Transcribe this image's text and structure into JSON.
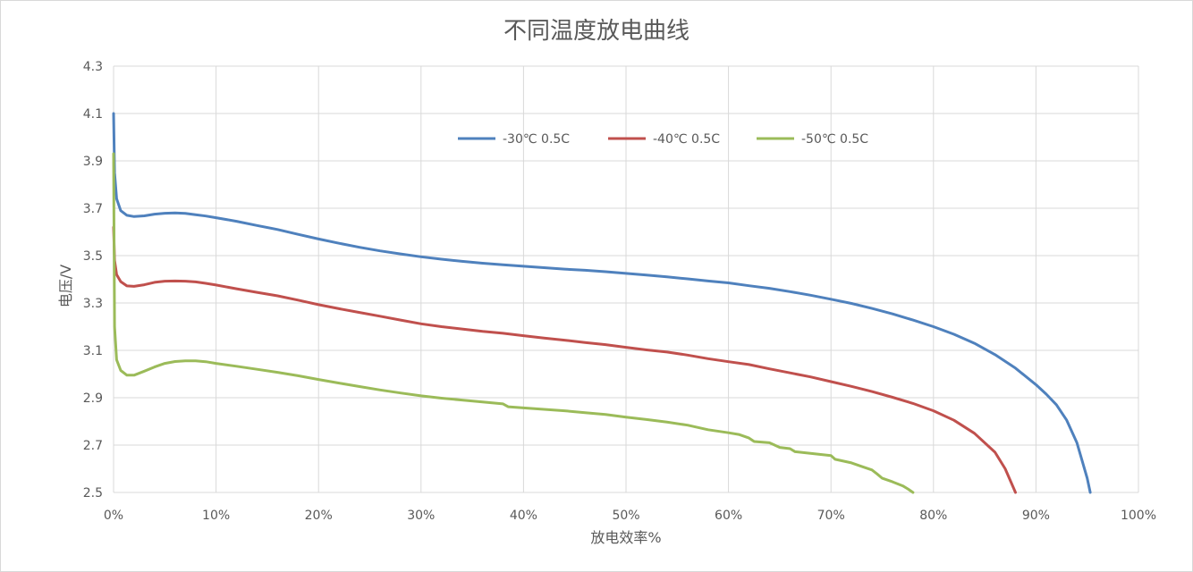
{
  "chart_data": {
    "type": "line",
    "title": "不同温度放电曲线",
    "xlabel": "放电效率%",
    "ylabel": "电压/V",
    "xlim": [
      0,
      100
    ],
    "ylim": [
      2.5,
      4.3
    ],
    "x_ticks": [
      "0%",
      "10%",
      "20%",
      "30%",
      "40%",
      "50%",
      "60%",
      "70%",
      "80%",
      "90%",
      "100%"
    ],
    "y_ticks": [
      "2.5",
      "2.7",
      "2.9",
      "3.1",
      "3.3",
      "3.5",
      "3.7",
      "3.9",
      "4.1",
      "4.3"
    ],
    "grid": true,
    "legend_position": "top-center",
    "series": [
      {
        "name": "-30℃ 0.5C",
        "color": "#4f81bd",
        "points": [
          [
            0,
            4.1
          ],
          [
            0.1,
            3.85
          ],
          [
            0.3,
            3.74
          ],
          [
            0.7,
            3.69
          ],
          [
            1.3,
            3.67
          ],
          [
            2,
            3.665
          ],
          [
            3,
            3.668
          ],
          [
            4,
            3.675
          ],
          [
            5,
            3.679
          ],
          [
            6,
            3.68
          ],
          [
            7,
            3.678
          ],
          [
            8,
            3.673
          ],
          [
            9,
            3.667
          ],
          [
            10,
            3.66
          ],
          [
            12,
            3.645
          ],
          [
            14,
            3.627
          ],
          [
            16,
            3.61
          ],
          [
            18,
            3.59
          ],
          [
            20,
            3.57
          ],
          [
            22,
            3.552
          ],
          [
            24,
            3.535
          ],
          [
            26,
            3.52
          ],
          [
            28,
            3.507
          ],
          [
            30,
            3.495
          ],
          [
            32,
            3.485
          ],
          [
            34,
            3.476
          ],
          [
            36,
            3.468
          ],
          [
            38,
            3.461
          ],
          [
            40,
            3.455
          ],
          [
            42,
            3.449
          ],
          [
            44,
            3.443
          ],
          [
            46,
            3.438
          ],
          [
            48,
            3.432
          ],
          [
            50,
            3.425
          ],
          [
            52,
            3.418
          ],
          [
            54,
            3.41
          ],
          [
            56,
            3.402
          ],
          [
            58,
            3.393
          ],
          [
            60,
            3.385
          ],
          [
            62,
            3.373
          ],
          [
            64,
            3.362
          ],
          [
            66,
            3.348
          ],
          [
            68,
            3.333
          ],
          [
            70,
            3.316
          ],
          [
            72,
            3.298
          ],
          [
            74,
            3.277
          ],
          [
            76,
            3.254
          ],
          [
            78,
            3.228
          ],
          [
            80,
            3.2
          ],
          [
            82,
            3.168
          ],
          [
            84,
            3.13
          ],
          [
            86,
            3.082
          ],
          [
            88,
            3.025
          ],
          [
            90,
            2.955
          ],
          [
            91,
            2.915
          ],
          [
            92,
            2.87
          ],
          [
            93,
            2.805
          ],
          [
            94,
            2.71
          ],
          [
            94.6,
            2.62
          ],
          [
            95,
            2.56
          ],
          [
            95.3,
            2.5
          ]
        ]
      },
      {
        "name": "-40℃ 0.5C",
        "color": "#c0504d",
        "points": [
          [
            0,
            3.62
          ],
          [
            0.1,
            3.48
          ],
          [
            0.3,
            3.42
          ],
          [
            0.7,
            3.39
          ],
          [
            1.3,
            3.372
          ],
          [
            2,
            3.37
          ],
          [
            3,
            3.377
          ],
          [
            4,
            3.387
          ],
          [
            5,
            3.392
          ],
          [
            6,
            3.393
          ],
          [
            7,
            3.392
          ],
          [
            8,
            3.389
          ],
          [
            9,
            3.383
          ],
          [
            10,
            3.376
          ],
          [
            12,
            3.36
          ],
          [
            14,
            3.345
          ],
          [
            16,
            3.33
          ],
          [
            18,
            3.312
          ],
          [
            20,
            3.293
          ],
          [
            22,
            3.276
          ],
          [
            24,
            3.26
          ],
          [
            26,
            3.244
          ],
          [
            28,
            3.228
          ],
          [
            30,
            3.212
          ],
          [
            32,
            3.2
          ],
          [
            34,
            3.19
          ],
          [
            36,
            3.18
          ],
          [
            38,
            3.172
          ],
          [
            40,
            3.162
          ],
          [
            42,
            3.152
          ],
          [
            44,
            3.143
          ],
          [
            46,
            3.133
          ],
          [
            48,
            3.124
          ],
          [
            50,
            3.113
          ],
          [
            52,
            3.102
          ],
          [
            54,
            3.093
          ],
          [
            56,
            3.08
          ],
          [
            58,
            3.065
          ],
          [
            60,
            3.052
          ],
          [
            62,
            3.04
          ],
          [
            64,
            3.022
          ],
          [
            66,
            3.005
          ],
          [
            68,
            2.988
          ],
          [
            70,
            2.968
          ],
          [
            72,
            2.948
          ],
          [
            74,
            2.926
          ],
          [
            76,
            2.902
          ],
          [
            78,
            2.876
          ],
          [
            80,
            2.845
          ],
          [
            82,
            2.805
          ],
          [
            84,
            2.75
          ],
          [
            86,
            2.67
          ],
          [
            87,
            2.6
          ],
          [
            87.6,
            2.54
          ],
          [
            88,
            2.5
          ]
        ]
      },
      {
        "name": "-50℃ 0.5C",
        "color": "#9bbb59",
        "points": [
          [
            0,
            3.93
          ],
          [
            0.1,
            3.2
          ],
          [
            0.3,
            3.06
          ],
          [
            0.7,
            3.015
          ],
          [
            1.3,
            2.995
          ],
          [
            2,
            2.995
          ],
          [
            3,
            3.012
          ],
          [
            4,
            3.03
          ],
          [
            5,
            3.045
          ],
          [
            6,
            3.053
          ],
          [
            7,
            3.056
          ],
          [
            8,
            3.056
          ],
          [
            9,
            3.052
          ],
          [
            10,
            3.045
          ],
          [
            12,
            3.033
          ],
          [
            14,
            3.02
          ],
          [
            16,
            3.007
          ],
          [
            18,
            2.993
          ],
          [
            20,
            2.977
          ],
          [
            22,
            2.962
          ],
          [
            24,
            2.947
          ],
          [
            26,
            2.933
          ],
          [
            28,
            2.92
          ],
          [
            30,
            2.908
          ],
          [
            32,
            2.898
          ],
          [
            34,
            2.89
          ],
          [
            36,
            2.882
          ],
          [
            38,
            2.874
          ],
          [
            38.5,
            2.862
          ],
          [
            40,
            2.857
          ],
          [
            42,
            2.851
          ],
          [
            44,
            2.845
          ],
          [
            46,
            2.837
          ],
          [
            48,
            2.829
          ],
          [
            50,
            2.818
          ],
          [
            52,
            2.808
          ],
          [
            54,
            2.797
          ],
          [
            56,
            2.784
          ],
          [
            58,
            2.765
          ],
          [
            60,
            2.752
          ],
          [
            61,
            2.745
          ],
          [
            62,
            2.73
          ],
          [
            62.5,
            2.715
          ],
          [
            64,
            2.71
          ],
          [
            64.5,
            2.7
          ],
          [
            65,
            2.69
          ],
          [
            66,
            2.685
          ],
          [
            66.5,
            2.672
          ],
          [
            68,
            2.665
          ],
          [
            70,
            2.656
          ],
          [
            70.4,
            2.64
          ],
          [
            72,
            2.625
          ],
          [
            73,
            2.61
          ],
          [
            74,
            2.595
          ],
          [
            74.5,
            2.578
          ],
          [
            75,
            2.56
          ],
          [
            76,
            2.545
          ],
          [
            77,
            2.528
          ],
          [
            77.5,
            2.515
          ],
          [
            78,
            2.5
          ]
        ]
      }
    ]
  }
}
